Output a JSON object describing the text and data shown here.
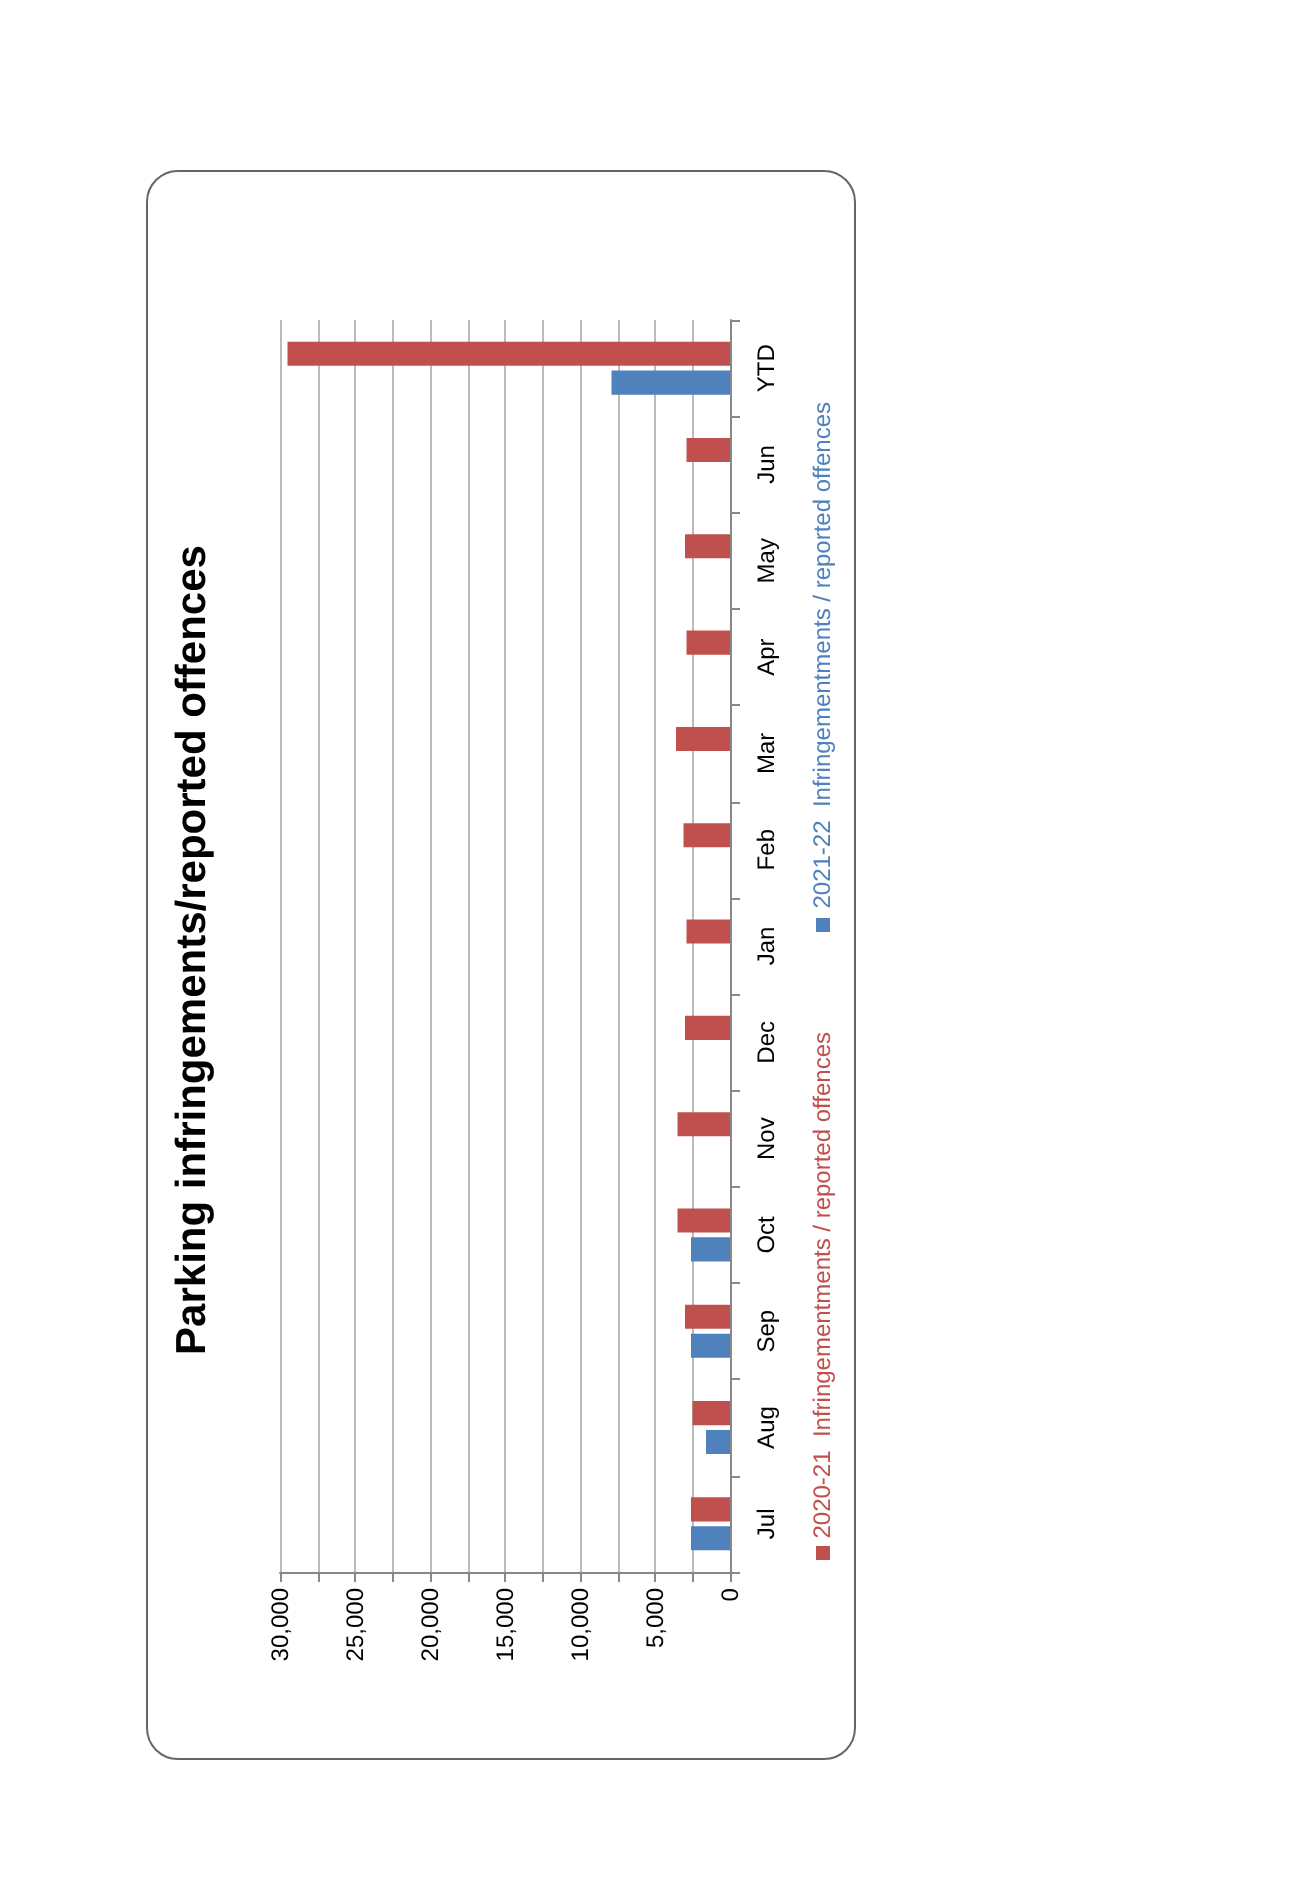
{
  "chart_data": {
    "type": "bar",
    "orientation": "horizontal",
    "title": "Parking infringements/reported offences",
    "categories": [
      "YTD",
      "Jun",
      "May",
      "Apr",
      "Mar",
      "Feb",
      "Jan",
      "Dec",
      "Nov",
      "Oct",
      "Sep",
      "Aug",
      "Jul"
    ],
    "series": [
      {
        "name": "2020-21  Infringementments / reported offences",
        "color": "#c0504d",
        "values": [
          29500,
          2900,
          3000,
          2900,
          3600,
          3100,
          2900,
          3000,
          3500,
          3500,
          3000,
          2500,
          2600
        ]
      },
      {
        "name": "2021-22  Infringementments / reported offences",
        "color": "#4f81bd",
        "values": [
          7900,
          null,
          null,
          null,
          null,
          null,
          null,
          null,
          null,
          2600,
          2600,
          1600,
          2600
        ]
      }
    ],
    "xlim": [
      30000,
      0
    ],
    "xticks": [
      0,
      {
        "value": 2500,
        "label": null
      },
      {
        "value": 5000,
        "label": "5,000"
      },
      {
        "value": 7500,
        "label": null
      },
      {
        "value": 10000,
        "label": "10,000"
      },
      {
        "value": 12500,
        "label": null
      },
      {
        "value": 15000,
        "label": "15,000"
      },
      {
        "value": 17500,
        "label": null
      },
      {
        "value": 20000,
        "label": "20,000"
      },
      {
        "value": 22500,
        "label": null
      },
      {
        "value": 25000,
        "label": "25,000"
      },
      {
        "value": 27500,
        "label": null
      },
      {
        "value": 30000,
        "label": "30,000"
      }
    ],
    "grid": "x",
    "legend": "right"
  }
}
